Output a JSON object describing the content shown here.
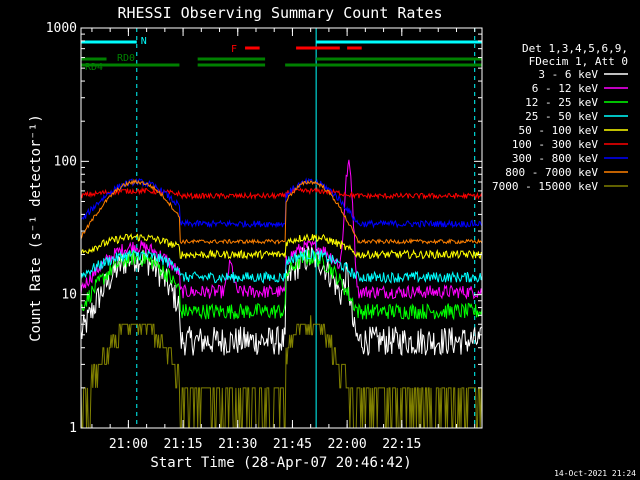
{
  "chart_data": {
    "type": "line",
    "title": "RHESSI Observing Summary Count Rates",
    "xlabel": "Start Time (28-Apr-07 20:46:42)",
    "ylabel": "Count Rate (s⁻¹ detector⁻¹)",
    "yscale": "log",
    "ylim": [
      1,
      1000
    ],
    "xlim_min": [
      -13,
      97
    ],
    "x_ticks_min": [
      0,
      15,
      30,
      45,
      60,
      75
    ],
    "x_tick_labels": [
      "21:00",
      "21:15",
      "21:30",
      "21:45",
      "22:00",
      "22:15"
    ],
    "y_tick_labels": [
      "1",
      "10",
      "100",
      "1000"
    ],
    "footer_date": "14-Oct-2021 21:24",
    "legend_header": [
      "Det 1,3,4,5,6,9,",
      "FDecim 1, Att 0"
    ],
    "series": [
      {
        "name": "3 - 6 keV",
        "color": "#ffffff",
        "night": 4.5,
        "peak": 19,
        "noise": 0.11,
        "dip_end": 4.5,
        "flare": "bump"
      },
      {
        "name": "6 - 12 keV",
        "color": "#ff00ff",
        "night": 10.5,
        "peak": 23,
        "noise": 0.05,
        "dip_end": 10.5,
        "flare": "spike"
      },
      {
        "name": "12 - 25 keV",
        "color": "#00ff00",
        "night": 7.5,
        "peak": 19,
        "noise": 0.06,
        "dip_end": 7.5,
        "flare": "none"
      },
      {
        "name": "25 - 50 keV",
        "color": "#00ffff",
        "night": 13.5,
        "peak": 20,
        "noise": 0.04,
        "dip_end": 13.5,
        "flare": "none"
      },
      {
        "name": "50 - 100 keV",
        "color": "#ffff00",
        "night": 20,
        "peak": 27,
        "noise": 0.03,
        "dip_end": 20,
        "flare": "none"
      },
      {
        "name": "100 - 300 keV",
        "color": "#ff0000",
        "night": 55,
        "peak": 60,
        "noise": 0.02,
        "dip_end": 55,
        "flare": "none"
      },
      {
        "name": "300 - 800 keV",
        "color": "#0000ff",
        "night": 34,
        "peak": 70,
        "noise": 0.025,
        "dip_end": 34,
        "flare": "none"
      },
      {
        "name": "800 - 7000 keV",
        "color": "#ff8000",
        "night": 25,
        "peak": 70,
        "noise": 0.015,
        "dip_end": 25,
        "flare": "none"
      },
      {
        "name": "7000 - 15000 keV",
        "color": "#808000",
        "night": 1.5,
        "peak": 6.5,
        "noise": 0.0,
        "dip_end": 1.5,
        "flare": "none"
      }
    ],
    "saa_and_night": {
      "orbit_lines_min": [
        2.3,
        51.5,
        95
      ],
      "peaks_min": [
        2.3,
        50
      ],
      "passes_min": [
        [
          -13,
          14
        ],
        [
          19,
          43
        ],
        [
          43,
          63
        ]
      ]
    },
    "flags": [
      {
        "label": "N",
        "color": "#00ffff",
        "segments_min": [
          [
            -13,
            2.3
          ],
          [
            51.5,
            97
          ]
        ]
      },
      {
        "label": "F",
        "color": "#ff0000",
        "segments_min": [
          [
            32,
            36
          ],
          [
            46,
            58
          ],
          [
            60,
            64
          ]
        ]
      },
      {
        "label": "RD0",
        "color": "#008000",
        "segments_min": [
          [
            -13,
            -6
          ],
          [
            19,
            37.5
          ],
          [
            51.5,
            97
          ]
        ]
      },
      {
        "label": "RD4",
        "color": "#008000",
        "segments_min": [
          [
            -13,
            14
          ],
          [
            19,
            37.5
          ],
          [
            43,
            51.5
          ],
          [
            51.5,
            97
          ]
        ]
      }
    ]
  }
}
